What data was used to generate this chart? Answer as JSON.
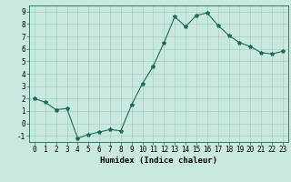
{
  "x": [
    0,
    1,
    2,
    3,
    4,
    5,
    6,
    7,
    8,
    9,
    10,
    11,
    12,
    13,
    14,
    15,
    16,
    17,
    18,
    19,
    20,
    21,
    22,
    23
  ],
  "y": [
    2.0,
    1.7,
    1.1,
    1.2,
    -1.2,
    -0.9,
    -0.7,
    -0.5,
    -0.6,
    1.5,
    3.2,
    4.6,
    6.5,
    8.6,
    7.8,
    8.7,
    8.9,
    7.9,
    7.1,
    6.5,
    6.2,
    5.7,
    5.6,
    5.8
  ],
  "line_color": "#1a6b5a",
  "marker": "*",
  "marker_size": 3.0,
  "bg_color": "#c8e8e0",
  "grid_color": "#a0c8be",
  "axis_color": "#1a6b5a",
  "xlabel": "Humidex (Indice chaleur)",
  "xlim": [
    -0.5,
    23.5
  ],
  "ylim": [
    -1.5,
    9.5
  ],
  "xticks": [
    0,
    1,
    2,
    3,
    4,
    5,
    6,
    7,
    8,
    9,
    10,
    11,
    12,
    13,
    14,
    15,
    16,
    17,
    18,
    19,
    20,
    21,
    22,
    23
  ],
  "yticks": [
    -1,
    0,
    1,
    2,
    3,
    4,
    5,
    6,
    7,
    8,
    9
  ],
  "xlabel_fontsize": 6.5,
  "tick_fontsize": 5.5
}
